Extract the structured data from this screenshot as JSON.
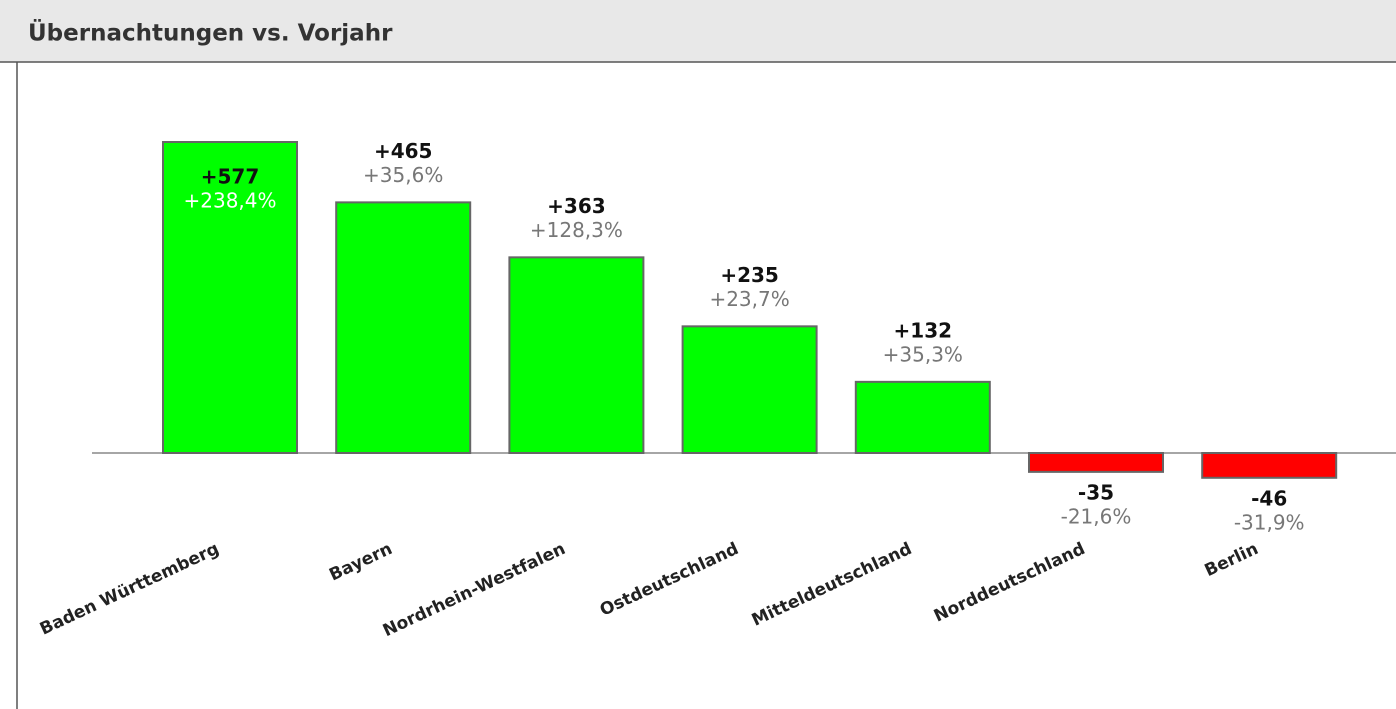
{
  "chart_data": {
    "type": "bar",
    "title": "Übernachtungen vs. Vorjahr",
    "categories": [
      "Baden Württemberg",
      "Bayern",
      "Nordrhein-Westfalen",
      "Ostdeutschland",
      "Mitteldeutschland",
      "Norddeutschland",
      "Berlin"
    ],
    "values": [
      577,
      465,
      363,
      235,
      132,
      -35,
      -46
    ],
    "value_labels": [
      "+577",
      "+465",
      "+363",
      "+235",
      "+132",
      "-35",
      "-46"
    ],
    "percent_values": [
      238.4,
      35.6,
      128.3,
      23.7,
      35.3,
      -21.6,
      -31.9
    ],
    "percent_labels": [
      "+238,4%",
      "+35,6%",
      "+128,3%",
      "+23,7%",
      "+35,3%",
      "-21,6%",
      "-31,9%"
    ],
    "positive_color": "#00ff00",
    "negative_color": "#ff0000"
  }
}
